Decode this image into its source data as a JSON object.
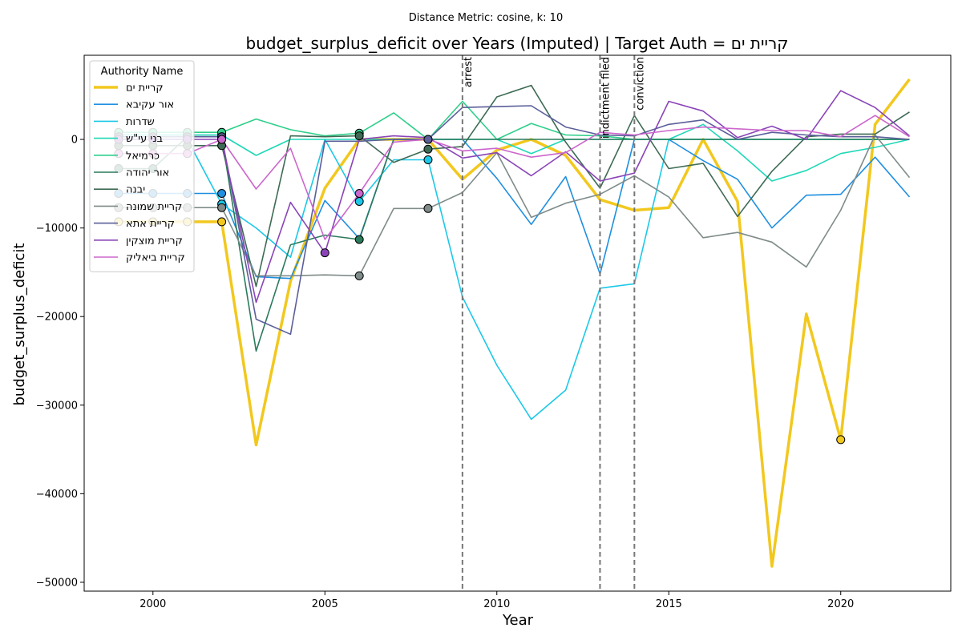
{
  "chart_data": {
    "type": "line",
    "subtitle": "Distance Metric: cosine, k: 10",
    "title": "budget_surplus_deficit over Years (Imputed) | Target Auth = קריית ים",
    "xlabel": "Year",
    "ylabel": "budget_surplus_deficit",
    "xlim": [
      1998,
      2023.2
    ],
    "ylim": [
      -51000,
      9500
    ],
    "xticks": [
      2000,
      2005,
      2010,
      2015,
      2020
    ],
    "yticks": [
      -50000,
      -40000,
      -30000,
      -20000,
      -10000,
      0
    ],
    "ytick_labels": [
      "−50000",
      "−40000",
      "−30000",
      "−20000",
      "−10000",
      "0"
    ],
    "grid": false,
    "legend": {
      "title": "Authority Name",
      "placement": "top-left"
    },
    "events": [
      {
        "x": 2009,
        "label": "arrest"
      },
      {
        "x": 2013,
        "label": "indictment filed"
      },
      {
        "x": 2014,
        "label": "conviction"
      }
    ],
    "series": [
      {
        "name": "קריית ים",
        "color": "#f2c81e",
        "linewidth": 3.5,
        "target": true,
        "x": [
          1999,
          2000,
          2001,
          2002,
          2003,
          2004,
          2005,
          2006,
          2007,
          2008,
          2009,
          2010,
          2011,
          2012,
          2013,
          2014,
          2015,
          2016,
          2017,
          2018,
          2019,
          2020,
          2021,
          2022
        ],
        "y": [
          -9300,
          -9300,
          -9300,
          -9300,
          -34500,
          -16000,
          -5500,
          0,
          0,
          0,
          -4500,
          -1200,
          0,
          -1800,
          -6800,
          -8000,
          -7700,
          0,
          -7000,
          -48200,
          -19700,
          -33900,
          1700,
          6800
        ],
        "imputed_x": [
          1999,
          2000,
          2001,
          2002,
          2008,
          2020
        ]
      },
      {
        "name": "אור עקיבא",
        "color": "#1f8fe0",
        "linewidth": 1.6,
        "x": [
          1999,
          2000,
          2001,
          2002,
          2003,
          2004,
          2005,
          2006,
          2007,
          2008,
          2009,
          2010,
          2011,
          2012,
          2013,
          2014,
          2015,
          2016,
          2017,
          2018,
          2019,
          2020,
          2021,
          2022
        ],
        "y": [
          -6100,
          -6100,
          -6100,
          -6100,
          -15500,
          -15700,
          -6900,
          -11200,
          0,
          0,
          0,
          -4400,
          -9600,
          -4200,
          -15200,
          0,
          0,
          -2400,
          -4500,
          -10000,
          -6300,
          -6200,
          -2000,
          -6500
        ],
        "imputed_x": [
          1999,
          2000,
          2001,
          2002
        ]
      },
      {
        "name": "שדרות",
        "color": "#1cc8e8",
        "linewidth": 1.6,
        "x": [
          1999,
          2000,
          2001,
          2002,
          2003,
          2004,
          2005,
          2006,
          2007,
          2008,
          2009,
          2010,
          2011,
          2012,
          2013,
          2014,
          2015,
          2016,
          2017,
          2018,
          2019,
          2020,
          2021,
          2022
        ],
        "y": [
          0,
          0,
          0,
          -7300,
          -10000,
          -13300,
          0,
          -7000,
          -2300,
          -2300,
          -17800,
          -25500,
          -31600,
          -28300,
          -16800,
          -16300,
          0,
          0,
          0,
          0,
          0,
          0,
          0,
          0
        ],
        "imputed_x": [
          1999,
          2000,
          2001,
          2002,
          2006,
          2008
        ]
      },
      {
        "name": "בני עי\"ש",
        "color": "#1fd8b8",
        "linewidth": 1.6,
        "x": [
          1999,
          2000,
          2001,
          2002,
          2003,
          2004,
          2005,
          2006,
          2007,
          2008,
          2009,
          2010,
          2011,
          2012,
          2013,
          2014,
          2015,
          2016,
          2017,
          2018,
          2019,
          2020,
          2021,
          2022
        ],
        "y": [
          500,
          500,
          500,
          500,
          -1800,
          0,
          0,
          0,
          0,
          0,
          0,
          0,
          -1600,
          0,
          0,
          0,
          0,
          1700,
          -1300,
          -4700,
          -3500,
          -1600,
          -900,
          0
        ],
        "imputed_x": [
          1999,
          2000,
          2001,
          2002
        ]
      },
      {
        "name": "כרמיאל",
        "color": "#2ecf8a",
        "linewidth": 1.6,
        "x": [
          1999,
          2000,
          2001,
          2002,
          2003,
          2004,
          2005,
          2006,
          2007,
          2008,
          2009,
          2010,
          2011,
          2012,
          2013,
          2014,
          2015,
          2016,
          2017,
          2018,
          2019,
          2020,
          2021,
          2022
        ],
        "y": [
          800,
          800,
          800,
          800,
          2300,
          1100,
          400,
          700,
          3000,
          0,
          4300,
          0,
          1800,
          500,
          400,
          0,
          0,
          0,
          0,
          0,
          0,
          0,
          0,
          0
        ],
        "imputed_x": [
          1999,
          2000,
          2001,
          2002,
          2006
        ]
      },
      {
        "name": "אור יהודה",
        "color": "#2b7a5c",
        "linewidth": 1.6,
        "x": [
          1999,
          2000,
          2001,
          2002,
          2003,
          2004,
          2005,
          2006,
          2007,
          2008,
          2009,
          2010,
          2011,
          2012,
          2013,
          2014,
          2015,
          2016,
          2017,
          2018,
          2019,
          2020,
          2021,
          2022
        ],
        "y": [
          -3300,
          -3300,
          300,
          300,
          -23900,
          -11900,
          -10800,
          -11300,
          0,
          0,
          0,
          0,
          0,
          0,
          0,
          0,
          0,
          0,
          0,
          0,
          0,
          0,
          0,
          0
        ],
        "imputed_x": [
          1999,
          2000,
          2001,
          2002,
          2006
        ]
      },
      {
        "name": "יבנה",
        "color": "#3e6b55",
        "linewidth": 1.6,
        "x": [
          1999,
          2000,
          2001,
          2002,
          2003,
          2004,
          2005,
          2006,
          2007,
          2008,
          2009,
          2010,
          2011,
          2012,
          2013,
          2014,
          2015,
          2016,
          2017,
          2018,
          2019,
          2020,
          2021,
          2022
        ],
        "y": [
          -700,
          -700,
          -700,
          -700,
          -16600,
          400,
          300,
          400,
          -2600,
          -1100,
          -800,
          4800,
          6100,
          -300,
          -5500,
          2700,
          -3300,
          -2700,
          -8700,
          -3600,
          300,
          600,
          600,
          3100
        ],
        "imputed_x": [
          1999,
          2000,
          2001,
          2002,
          2006,
          2008
        ]
      },
      {
        "name": "קריית שמונה",
        "color": "#7f8c8a",
        "linewidth": 1.6,
        "x": [
          1999,
          2000,
          2001,
          2002,
          2003,
          2004,
          2005,
          2006,
          2007,
          2008,
          2009,
          2010,
          2011,
          2012,
          2013,
          2014,
          2015,
          2016,
          2017,
          2018,
          2019,
          2020,
          2021,
          2022
        ],
        "y": [
          -7700,
          -7700,
          -7700,
          -7700,
          -15400,
          -15400,
          -15300,
          -15400,
          -7800,
          -7800,
          -6000,
          -1500,
          -8800,
          -7200,
          -6200,
          -4100,
          -6500,
          -11100,
          -10500,
          -11600,
          -14400,
          -8000,
          500,
          -4300
        ],
        "imputed_x": [
          1999,
          2000,
          2001,
          2002,
          2006,
          2008
        ]
      },
      {
        "name": "קריית אתא",
        "color": "#5b5f9a",
        "linewidth": 1.6,
        "x": [
          1999,
          2000,
          2001,
          2002,
          2003,
          2004,
          2005,
          2006,
          2007,
          2008,
          2009,
          2010,
          2011,
          2012,
          2013,
          2014,
          2015,
          2016,
          2017,
          2018,
          2019,
          2020,
          2021,
          2022
        ],
        "y": [
          300,
          300,
          300,
          300,
          -20300,
          -22000,
          -200,
          -200,
          0,
          0,
          3600,
          3700,
          3800,
          1400,
          500,
          400,
          1700,
          2200,
          0,
          800,
          500,
          300,
          300,
          0
        ],
        "imputed_x": [
          1999,
          2000,
          2001,
          2002,
          2008
        ]
      },
      {
        "name": "קריית מוצקין",
        "color": "#8a44b8",
        "linewidth": 1.6,
        "x": [
          1999,
          2000,
          2001,
          2002,
          2003,
          2004,
          2005,
          2006,
          2007,
          2008,
          2009,
          2010,
          2011,
          2012,
          2013,
          2014,
          2015,
          2016,
          2017,
          2018,
          2019,
          2020,
          2021,
          2022
        ],
        "y": [
          0,
          0,
          0,
          0,
          -18400,
          -7100,
          -12800,
          0,
          400,
          200,
          -2100,
          -1500,
          -4100,
          -1400,
          -4700,
          -3800,
          4300,
          3200,
          200,
          1500,
          0,
          5500,
          3600,
          400
        ],
        "imputed_x": [
          1999,
          2000,
          2001,
          2002,
          2005
        ]
      },
      {
        "name": "קריית ביאליק",
        "color": "#cc66cc",
        "linewidth": 1.6,
        "x": [
          1999,
          2000,
          2001,
          2002,
          2003,
          2004,
          2005,
          2006,
          2007,
          2008,
          2009,
          2010,
          2011,
          2012,
          2013,
          2014,
          2015,
          2016,
          2017,
          2018,
          2019,
          2020,
          2021,
          2022
        ],
        "y": [
          -1600,
          -1600,
          -1600,
          0,
          -5600,
          -1000,
          -11300,
          -6100,
          -300,
          0,
          -1300,
          -1000,
          -2000,
          -1500,
          800,
          500,
          1000,
          1400,
          1200,
          1000,
          1000,
          300,
          2700,
          300
        ],
        "imputed_x": [
          1999,
          2000,
          2001,
          2002,
          2006
        ]
      }
    ]
  }
}
